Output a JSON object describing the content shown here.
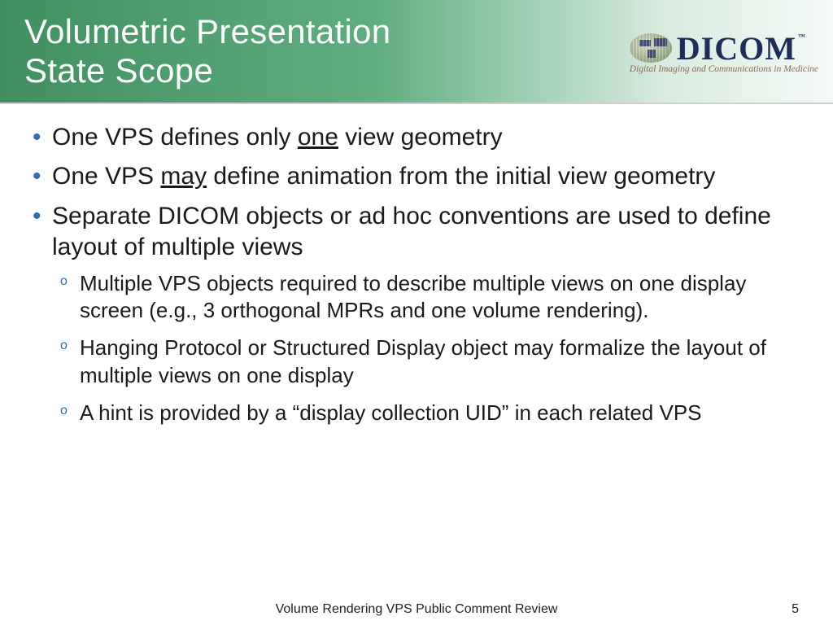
{
  "header": {
    "title_line1": "Volumetric Presentation",
    "title_line2": "State Scope",
    "gradient_from": "#3f8f5f",
    "gradient_mid": "#5fae7f",
    "gradient_to": "#f5faf7",
    "border_bottom": "#cfcfcf"
  },
  "logo": {
    "word": "DICOM",
    "tm": "™",
    "tagline": "Digital Imaging and Communications in Medicine",
    "text_color": "#1e2e5a",
    "tagline_color": "#8a6a4a"
  },
  "bullets": {
    "bullet_color": "#2f6fb0",
    "level1_fontsize": 30,
    "level2_fontsize": 26,
    "items": [
      {
        "pre": "One VPS defines only ",
        "u": "one",
        "post": " view geometry"
      },
      {
        "pre": "One VPS ",
        "u": "may",
        "post": " define animation from the initial view geometry"
      },
      {
        "pre": "Separate DICOM objects or ad hoc conventions are used to define layout of multiple views",
        "sub": [
          "Multiple VPS objects required to describe multiple views on one display screen (e.g., 3 orthogonal MPRs and one volume rendering).",
          "Hanging Protocol or Structured Display object may formalize the layout of multiple views on one display",
          "A hint is provided by a “display collection UID” in each related VPS"
        ]
      }
    ]
  },
  "footer": {
    "text": "Volume Rendering VPS Public Comment Review",
    "page": "5"
  },
  "colors": {
    "text": "#1a1a1a",
    "background": "#ffffff"
  }
}
